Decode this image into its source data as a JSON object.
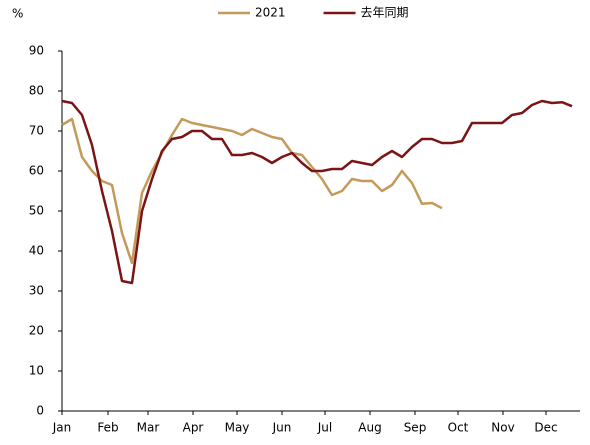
{
  "chart_data": {
    "type": "line",
    "y_label": "%",
    "x": [
      0,
      1,
      2,
      3,
      4,
      5,
      6,
      7,
      8,
      9,
      10,
      11,
      12,
      13,
      14,
      15,
      16,
      17,
      18,
      19,
      20,
      21,
      22,
      23,
      24,
      25,
      26,
      27,
      28,
      29,
      30,
      31,
      32,
      33,
      34,
      35,
      36,
      37,
      38,
      39,
      40,
      41,
      42,
      43,
      44,
      45,
      46,
      47,
      48,
      49,
      50,
      51
    ],
    "series": [
      {
        "name": "2021",
        "color": "#c49a5a",
        "values": [
          71.5,
          73,
          63.5,
          60,
          57.5,
          56.5,
          44.5,
          37,
          54.5,
          60,
          64.5,
          69,
          73,
          72,
          71.5,
          71,
          70.5,
          70,
          69,
          70.5,
          69.5,
          68.5,
          68,
          64.5,
          64,
          61,
          58,
          54,
          55,
          58,
          57.5,
          57.5,
          55,
          56.5,
          60,
          57,
          51.8,
          52,
          50.7,
          null,
          null,
          null,
          null,
          null,
          null,
          null,
          null,
          null,
          null,
          null,
          null,
          null
        ]
      },
      {
        "name": "去年同期",
        "color": "#7b1416",
        "values": [
          77.5,
          77,
          74,
          66.5,
          55,
          45,
          32.5,
          32,
          50,
          58,
          65,
          68,
          68.5,
          70,
          70,
          68,
          68,
          64,
          64,
          64.5,
          63.5,
          62,
          63.5,
          64.5,
          62,
          60,
          60,
          60.5,
          60.5,
          62.5,
          62,
          61.5,
          63.5,
          65,
          63.5,
          66,
          68,
          68,
          67,
          67,
          67.5,
          72,
          72,
          72,
          72,
          74,
          74.5,
          76.5,
          77.5,
          77,
          77.2,
          76.2
        ]
      }
    ],
    "xlim": [
      0,
      51.8
    ],
    "xticks": [
      {
        "value": 0,
        "label": "Jan"
      },
      {
        "value": 4.6,
        "label": "Feb"
      },
      {
        "value": 8.6,
        "label": "Mar"
      },
      {
        "value": 13.1,
        "label": "Apr"
      },
      {
        "value": 17.5,
        "label": "May"
      },
      {
        "value": 22,
        "label": "Jun"
      },
      {
        "value": 26.3,
        "label": "Jul"
      },
      {
        "value": 30.8,
        "label": "Aug"
      },
      {
        "value": 35.3,
        "label": "Sep"
      },
      {
        "value": 39.6,
        "label": "Oct"
      },
      {
        "value": 44.1,
        "label": "Nov"
      },
      {
        "value": 48.4,
        "label": "Dec"
      }
    ],
    "ylim": [
      0,
      90
    ],
    "yticks": [
      0,
      10,
      20,
      30,
      40,
      50,
      60,
      70,
      80,
      90
    ],
    "legend": "top"
  }
}
